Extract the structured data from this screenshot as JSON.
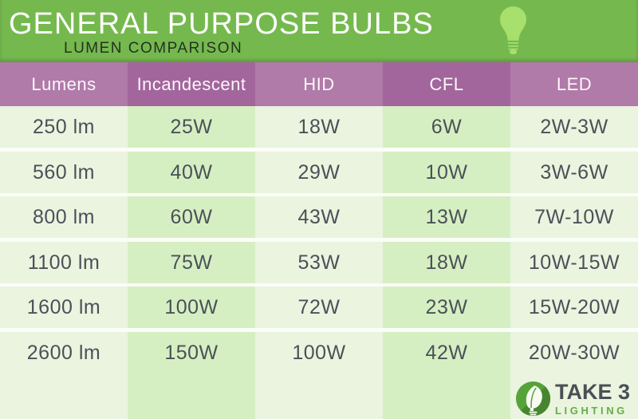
{
  "header": {
    "title": "GENERAL PURPOSE BULBS",
    "subtitle": "LUMEN COMPARISON"
  },
  "chart_data": {
    "type": "table",
    "title": "GENERAL PURPOSE BULBS",
    "subtitle": "LUMEN COMPARISON",
    "columns": [
      "Lumens",
      "Incandescent",
      "HID",
      "CFL",
      "LED"
    ],
    "rows": [
      [
        "250 lm",
        "25W",
        "18W",
        "6W",
        "2W-3W"
      ],
      [
        "560 lm",
        "40W",
        "29W",
        "10W",
        "3W-6W"
      ],
      [
        "800 lm",
        "60W",
        "43W",
        "13W",
        "7W-10W"
      ],
      [
        "1100 lm",
        "75W",
        "53W",
        "18W",
        "10W-15W"
      ],
      [
        "1600 lm",
        "100W",
        "72W",
        "23W",
        "15W-20W"
      ],
      [
        "2600 lm",
        "150W",
        "100W",
        "42W",
        "20W-30W"
      ]
    ],
    "column_shading": "columns Incandescent and CFL are shaded darker",
    "layout_hints": {
      "grid": "off",
      "legend": "none"
    }
  },
  "logo": {
    "name": "TAKE 3",
    "tagline": "LIGHTING",
    "icon": "leaf-bulb-circle-icon"
  },
  "icons": {
    "top_right": "lightbulb-icon"
  },
  "colors": {
    "header_green": "#75b94e",
    "bulb_icon_green": "#a7e06d",
    "table_header_purple": "#b07aa9",
    "table_header_purple_dark": "#a2669c",
    "cell_green_light": "#eaf4df",
    "cell_green_dark": "#d6efc2",
    "row_gap_white": "#fbfdf8",
    "cell_text": "#4b5158",
    "title_text": "#fcfdfa",
    "subtitle_text": "#243122",
    "logo_text_dark": "#4a5056",
    "logo_green": "#66ad47",
    "logo_circle_green": "#55a339",
    "logo_circle_shade": "#47862e"
  }
}
